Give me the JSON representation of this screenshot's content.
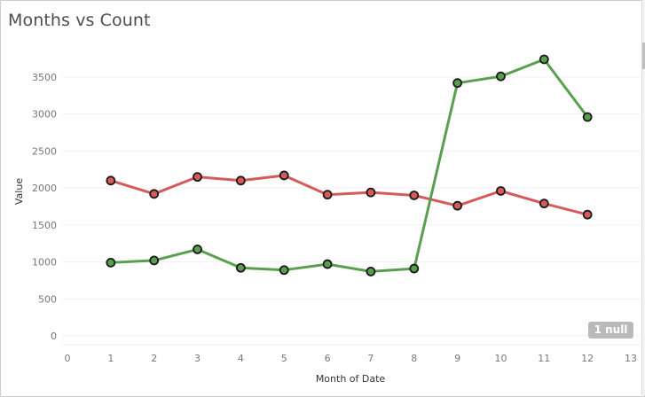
{
  "chart_data": {
    "type": "line",
    "title": "Months vs Count",
    "xlabel": "Month of Date",
    "ylabel": "Value",
    "x_ticks": [
      0,
      1,
      2,
      3,
      4,
      5,
      6,
      7,
      8,
      9,
      10,
      11,
      12,
      13
    ],
    "y_ticks": [
      0,
      500,
      1000,
      1500,
      2000,
      2500,
      3000,
      3500
    ],
    "xlim": [
      0,
      13
    ],
    "ylim": [
      -100,
      3950
    ],
    "grid": true,
    "x": [
      1,
      2,
      3,
      4,
      5,
      6,
      7,
      8,
      9,
      10,
      11,
      12
    ],
    "series": [
      {
        "color": "#d65a5a",
        "values": [
          2100,
          1920,
          2150,
          2100,
          2170,
          1910,
          1940,
          1900,
          1760,
          1960,
          1790,
          1640
        ]
      },
      {
        "color": "#5a9e4f",
        "values": [
          990,
          1020,
          1170,
          920,
          890,
          970,
          870,
          910,
          3420,
          3510,
          3740,
          2960
        ]
      }
    ],
    "null_indicator": "1 null"
  }
}
